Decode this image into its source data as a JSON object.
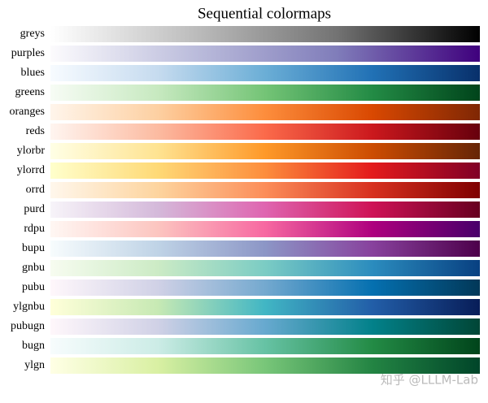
{
  "chart_data": {
    "type": "colormap",
    "title": "Sequential colormaps",
    "colormaps": [
      {
        "name": "greys",
        "colors": [
          "#ffffff",
          "#bdbdbd",
          "#737373",
          "#000000"
        ]
      },
      {
        "name": "purples",
        "colors": [
          "#fcfbfd",
          "#bcbddc",
          "#807dba",
          "#3f007d"
        ]
      },
      {
        "name": "blues",
        "colors": [
          "#f7fbff",
          "#c6dbef",
          "#6baed6",
          "#2171b5",
          "#08306b"
        ]
      },
      {
        "name": "greens",
        "colors": [
          "#f7fcf5",
          "#c7e9c0",
          "#74c476",
          "#238b45",
          "#00441b"
        ]
      },
      {
        "name": "oranges",
        "colors": [
          "#fff5eb",
          "#fdd0a2",
          "#fd8d3c",
          "#d94801",
          "#7f2704"
        ]
      },
      {
        "name": "reds",
        "colors": [
          "#fff5f0",
          "#fcbba1",
          "#fb6a4a",
          "#cb181d",
          "#67000d"
        ]
      },
      {
        "name": "ylorbr",
        "colors": [
          "#ffffe5",
          "#fee391",
          "#fe9929",
          "#cc4c02",
          "#662506"
        ]
      },
      {
        "name": "ylorrd",
        "colors": [
          "#ffffcc",
          "#fed976",
          "#fd8d3c",
          "#e31a1c",
          "#800026"
        ]
      },
      {
        "name": "orrd",
        "colors": [
          "#fff7ec",
          "#fdd49e",
          "#fc8d59",
          "#d7301f",
          "#7f0000"
        ]
      },
      {
        "name": "purd",
        "colors": [
          "#f7f4f9",
          "#d4b9da",
          "#df65b0",
          "#ce1256",
          "#67001f"
        ]
      },
      {
        "name": "rdpu",
        "colors": [
          "#fff7f3",
          "#fcc5c0",
          "#f768a1",
          "#ae017e",
          "#49006a"
        ]
      },
      {
        "name": "bupu",
        "colors": [
          "#f7fcfd",
          "#bfd3e6",
          "#8c96c6",
          "#88419d",
          "#4d004b"
        ]
      },
      {
        "name": "gnbu",
        "colors": [
          "#f7fcf0",
          "#ccebc5",
          "#7bccc4",
          "#2b8cbe",
          "#084081"
        ]
      },
      {
        "name": "pubu",
        "colors": [
          "#fff7fb",
          "#d0d1e6",
          "#74a9cf",
          "#0570b0",
          "#023858"
        ]
      },
      {
        "name": "ylgnbu",
        "colors": [
          "#ffffd9",
          "#c7e9b4",
          "#41b6c4",
          "#225ea8",
          "#081d58"
        ]
      },
      {
        "name": "pubugn",
        "colors": [
          "#fff7fb",
          "#d0d1e6",
          "#67a9cf",
          "#02818a",
          "#014636"
        ]
      },
      {
        "name": "bugn",
        "colors": [
          "#f7fcfd",
          "#ccece6",
          "#66c2a4",
          "#238b45",
          "#00441b"
        ]
      },
      {
        "name": "ylgn",
        "colors": [
          "#ffffe5",
          "#d9f0a3",
          "#78c679",
          "#238443",
          "#004529"
        ]
      }
    ],
    "watermark": "知乎 @LLLM-Lab"
  }
}
